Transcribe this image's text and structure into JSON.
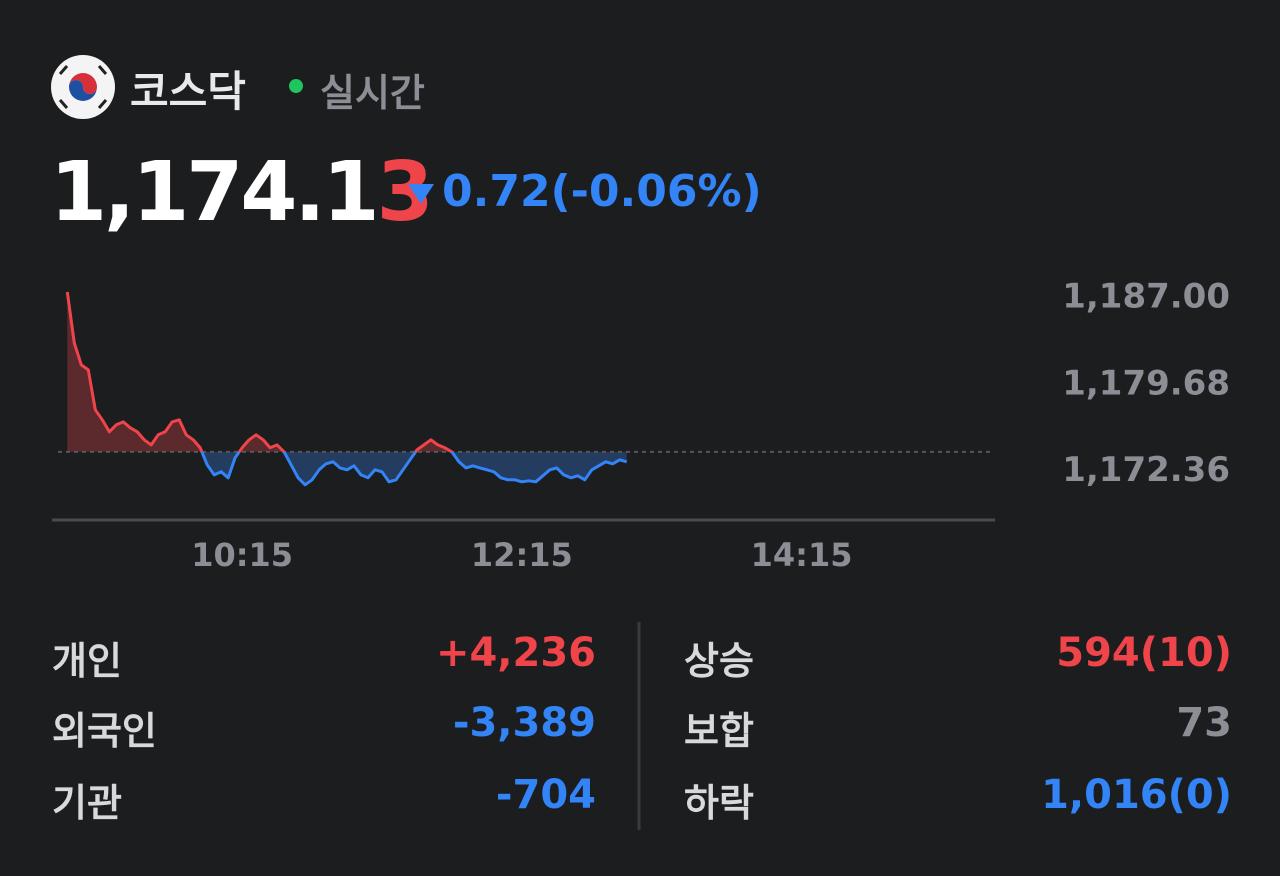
{
  "header": {
    "market": "코스닥",
    "status": "실시간"
  },
  "quote": {
    "price_main": "1,174.1",
    "price_last_digit": "3",
    "change": "0.72(-0.06%)"
  },
  "chart_data": {
    "type": "line",
    "x": [
      "09:00",
      "09:03",
      "09:06",
      "09:09",
      "09:12",
      "09:15",
      "09:18",
      "09:21",
      "09:24",
      "09:27",
      "09:30",
      "09:33",
      "09:36",
      "09:39",
      "09:42",
      "09:45",
      "09:48",
      "09:51",
      "09:54",
      "09:57",
      "10:00",
      "10:03",
      "10:06",
      "10:09",
      "10:12",
      "10:15",
      "10:18",
      "10:21",
      "10:24",
      "10:27",
      "10:30",
      "10:33",
      "10:36",
      "10:39",
      "10:42",
      "10:45",
      "10:48",
      "10:51",
      "10:54",
      "10:57",
      "11:00",
      "11:03",
      "11:06",
      "11:09",
      "11:12",
      "11:15",
      "11:18",
      "11:21",
      "11:24",
      "11:27",
      "11:30",
      "11:33",
      "11:36",
      "11:39",
      "11:42",
      "11:45",
      "11:48",
      "11:51",
      "11:54",
      "11:57",
      "12:00",
      "12:03",
      "12:06",
      "12:09",
      "12:12",
      "12:15",
      "12:18",
      "12:21",
      "12:24",
      "12:27",
      "12:30",
      "12:33",
      "12:36",
      "12:39",
      "12:42",
      "12:45",
      "12:48",
      "12:51",
      "12:54",
      "12:57",
      "13:00"
    ],
    "values": [
      1187.51,
      1183.2,
      1181.36,
      1180.94,
      1177.57,
      1176.73,
      1175.71,
      1176.3,
      1176.55,
      1176.05,
      1175.71,
      1175.04,
      1174.61,
      1175.46,
      1175.71,
      1176.55,
      1176.73,
      1175.46,
      1175.04,
      1174.36,
      1172.93,
      1172.08,
      1172.34,
      1171.83,
      1173.52,
      1174.36,
      1175.04,
      1175.46,
      1175.04,
      1174.36,
      1174.61,
      1174.02,
      1172.93,
      1171.83,
      1171.24,
      1171.66,
      1172.51,
      1173.01,
      1173.18,
      1172.67,
      1172.51,
      1172.84,
      1172.08,
      1171.83,
      1172.51,
      1172.34,
      1171.49,
      1171.66,
      1172.51,
      1173.35,
      1174.19,
      1174.61,
      1175.04,
      1174.61,
      1174.36,
      1174.02,
      1173.18,
      1172.67,
      1172.84,
      1172.67,
      1172.51,
      1172.34,
      1171.83,
      1171.66,
      1171.66,
      1171.49,
      1171.58,
      1171.49,
      1172.0,
      1172.51,
      1172.67,
      1172.08,
      1171.83,
      1172.0,
      1171.66,
      1172.51,
      1172.84,
      1173.18,
      1173.01,
      1173.35,
      1173.18
    ],
    "reference_line": 1174.02,
    "up_color": "#f0444b",
    "down_color": "#3384f6",
    "xlim": [
      "08:56",
      "15:38"
    ],
    "xticks": [
      "10:15",
      "12:15",
      "14:15"
    ],
    "ylim": [
      1168.27,
      1187.68
    ],
    "yticks": [
      {
        "value": 1172.36,
        "label": "1,172.36"
      },
      {
        "value": 1179.68,
        "label": "1,179.68"
      },
      {
        "value": 1187,
        "label": "1,187.00"
      }
    ]
  },
  "investors": [
    {
      "label": "개인",
      "value": "+4,236",
      "color": "#f0444b"
    },
    {
      "label": "외국인",
      "value": "-3,389",
      "color": "#3384f6"
    },
    {
      "label": "기관",
      "value": "-704",
      "color": "#3384f6"
    }
  ],
  "breadth": [
    {
      "label": "상승",
      "value": "594(10)",
      "color": "#f0444b"
    },
    {
      "label": "보합",
      "value": "73",
      "color": "#8b8e94"
    },
    {
      "label": "하락",
      "value": "1,016(0)",
      "color": "#3384f6"
    }
  ]
}
